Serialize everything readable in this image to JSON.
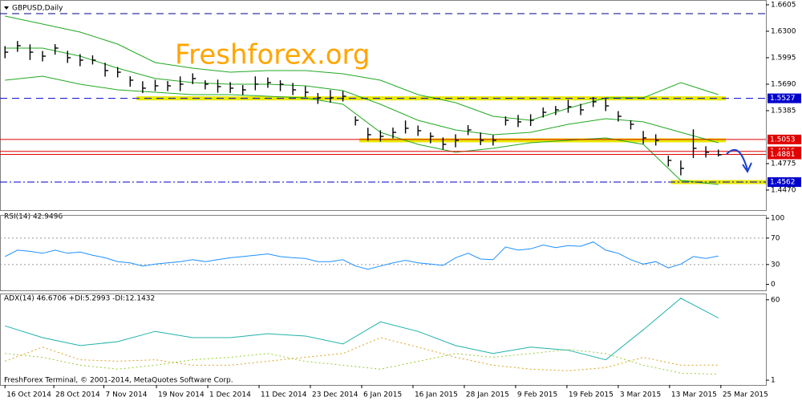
{
  "chart_data": [
    {
      "type": "ohlc",
      "title": "GBPUSD,Daily",
      "annotation": "Freshforex.org",
      "color": "#000000",
      "xlim": [
        -0.4,
        60.8
      ],
      "ylim": [
        1.4239,
        1.666
      ],
      "yticks": [
        1.6605,
        {
          "value": 1.63,
          "label": "1.6300"
        },
        1.5995,
        {
          "value": 1.569,
          "label": "1.5690"
        },
        1.5385,
        1.4775,
        {
          "value": 1.447,
          "label": "1.4470"
        }
      ],
      "high": [
        1.6129,
        1.6188,
        1.6149,
        1.6073,
        1.6151,
        1.6075,
        1.6037,
        1.6022,
        1.5937,
        1.5888,
        1.5781,
        1.5724,
        1.5741,
        1.5726,
        1.578,
        1.5815,
        1.5735,
        1.5742,
        1.5714,
        1.568,
        1.578,
        1.5768,
        1.5735,
        1.5705,
        1.5667,
        1.5588,
        1.5623,
        1.5611,
        1.5319,
        1.5188,
        1.5159,
        1.519,
        1.5272,
        1.5214,
        1.5134,
        1.5077,
        1.5113,
        1.5218,
        1.5133,
        1.5103,
        1.5319,
        1.5336,
        1.5344,
        1.5421,
        1.5439,
        1.5511,
        1.5464,
        1.5542,
        1.553,
        1.538,
        1.5273,
        1.5151,
        1.5113,
        1.4867,
        1.481,
        1.517,
        1.4975,
        1.4937
      ],
      "low": [
        1.5989,
        1.6063,
        1.5969,
        1.5953,
        1.6031,
        1.5935,
        1.5897,
        1.5917,
        1.5777,
        1.5768,
        1.5661,
        1.5589,
        1.5611,
        1.5611,
        1.561,
        1.569,
        1.563,
        1.5592,
        1.5589,
        1.5565,
        1.562,
        1.5648,
        1.561,
        1.5565,
        1.5542,
        1.5463,
        1.5478,
        1.5491,
        1.5214,
        1.5038,
        1.5029,
        1.5065,
        1.5122,
        1.5094,
        1.5009,
        1.4937,
        1.4963,
        1.5103,
        1.4988,
        1.4983,
        1.5214,
        1.5196,
        1.5209,
        1.5306,
        1.5334,
        1.5361,
        1.5334,
        1.5427,
        1.538,
        1.526,
        1.5168,
        1.5001,
        1.4983,
        1.4742,
        1.464,
        1.484,
        1.4845,
        1.4857
      ],
      "close": [
        1.6059,
        1.6133,
        1.6059,
        1.6013,
        1.6106,
        1.5995,
        1.5967,
        1.5967,
        1.5847,
        1.5828,
        1.5736,
        1.5644,
        1.5671,
        1.5671,
        1.569,
        1.5755,
        1.569,
        1.5662,
        1.5644,
        1.5625,
        1.569,
        1.5708,
        1.569,
        1.5625,
        1.5597,
        1.5533,
        1.5533,
        1.5551,
        1.5274,
        1.5108,
        1.5089,
        1.5135,
        1.5182,
        1.5154,
        1.5089,
        1.4997,
        1.5043,
        1.5163,
        1.5043,
        1.5043,
        1.5274,
        1.5256,
        1.5274,
        1.5366,
        1.5394,
        1.5431,
        1.5394,
        1.5487,
        1.544,
        1.532,
        1.5228,
        1.5071,
        1.5043,
        1.4812,
        1.472,
        1.4951,
        1.4905,
        1.4877
      ],
      "bands": {
        "color": "#22a822",
        "x": [
          0,
          3,
          6,
          9,
          12,
          15,
          18,
          21,
          24,
          27,
          30,
          33,
          36,
          39,
          42,
          45,
          48,
          51,
          54,
          57
        ],
        "upper": [
          1.6475,
          1.6383,
          1.629,
          1.6152,
          1.5939,
          1.5875,
          1.5828,
          1.5847,
          1.5847,
          1.581,
          1.5736,
          1.557,
          1.5477,
          1.532,
          1.5274,
          1.5413,
          1.5533,
          1.5533,
          1.5708,
          1.557
        ],
        "middle": [
          1.6106,
          1.6106,
          1.6013,
          1.5875,
          1.5755,
          1.5708,
          1.569,
          1.569,
          1.5671,
          1.5616,
          1.5459,
          1.5274,
          1.5163,
          1.5108,
          1.5135,
          1.5228,
          1.5292,
          1.5256,
          1.5135,
          1.5015
        ],
        "lower": [
          1.5736,
          1.5782,
          1.569,
          1.5625,
          1.5597,
          1.557,
          1.557,
          1.5551,
          1.5533,
          1.5459,
          1.5135,
          1.4997,
          1.4905,
          1.4951,
          1.5015,
          1.5043,
          1.5071,
          1.4997,
          1.4581,
          1.4535
        ]
      },
      "highlights": {
        "color": "#e8e800",
        "zones": [
          {
            "value": 1.5527,
            "from": 10.5,
            "to": 57.6
          },
          {
            "value": 1.5043,
            "from": 28.3,
            "to": 57.6
          },
          {
            "value": 1.4562,
            "from": 53.2,
            "to": 60.8
          }
        ]
      },
      "levels": [
        {
          "value": 1.6503,
          "color": "#00008b",
          "style": "dash",
          "tag": false
        },
        {
          "value": 1.5527,
          "color": "#0000cd",
          "style": "dash",
          "tag": true
        },
        {
          "value": 1.5053,
          "color": "#e00000",
          "style": "solid",
          "tag": true
        },
        {
          "value": 1.4916,
          "color": "#e00000",
          "style": "solid",
          "tag": true
        },
        {
          "value": 1.4881,
          "color": "#e00000",
          "style": "solid",
          "tag": true
        },
        {
          "value": 1.4562,
          "color": "#0000cd",
          "style": "dashdot",
          "tag": true
        }
      ]
    },
    {
      "type": "line",
      "title": "RSI(14) 42.9496",
      "color": "#1e90ff",
      "xlim": [
        -0.4,
        60.8
      ],
      "ylim": [
        -9,
        105
      ],
      "yticks": [
        100,
        70,
        30,
        0
      ],
      "levels": [
        70,
        30
      ],
      "values": [
        42.1,
        51.8,
        49.9,
        47.0,
        51.8,
        47.0,
        48.9,
        44.1,
        40.2,
        34.4,
        32.5,
        27.7,
        30.6,
        32.5,
        34.4,
        37.3,
        34.4,
        37.3,
        40.2,
        42.1,
        44.1,
        46.0,
        42.1,
        40.2,
        39.2,
        34.4,
        34.4,
        37.3,
        27.7,
        22.9,
        27.7,
        32.5,
        36.4,
        32.5,
        30.6,
        28.6,
        40.2,
        47.0,
        38.3,
        37.3,
        56.6,
        51.8,
        53.7,
        59.5,
        55.6,
        58.5,
        57.6,
        64.3,
        51.8,
        47.0,
        37.3,
        30.6,
        34.4,
        24.8,
        30.6,
        42.1,
        39.2,
        42.9
      ]
    },
    {
      "type": "multiline",
      "title": "ADX(14) 46.6706 +DI:5.2993 -DI:12.1432",
      "footer": "FreshForex Terminal, © 2001-2014, MetaQuotes Software Corp.",
      "xlim": [
        -0.4,
        60.8
      ],
      "ylim": [
        -2.5,
        64.6
      ],
      "yticks": [
        60,
        1
      ],
      "xticks": [
        {
          "value": 0,
          "label": "16 Oct 2014"
        },
        {
          "value": 3.9,
          "label": "28 Oct 2014"
        },
        {
          "value": 7.9,
          "label": "7 Nov 2014"
        },
        {
          "value": 12.1,
          "label": "19 Nov 2014"
        },
        {
          "value": 16.2,
          "label": "1 Dec 2014"
        },
        {
          "value": 20.3,
          "label": "11 Dec 2014"
        },
        {
          "value": 24.4,
          "label": "23 Dec 2014"
        },
        {
          "value": 28.5,
          "label": "6 Jan 2015"
        },
        {
          "value": 32.6,
          "label": "16 Jan 2015"
        },
        {
          "value": 36.7,
          "label": "28 Jan 2015"
        },
        {
          "value": 40.8,
          "label": "9 Feb 2015"
        },
        {
          "value": 44.9,
          "label": "19 Feb 2015"
        },
        {
          "value": 49,
          "label": "3 Mar 2015"
        },
        {
          "value": 53.1,
          "label": "13 Mar 2015"
        },
        {
          "value": 57.2,
          "label": "25 Mar 2015"
        }
      ],
      "x": [
        0,
        3,
        6,
        9,
        12,
        15,
        18,
        21,
        24,
        27,
        30,
        33,
        36,
        39,
        42,
        45,
        48,
        51,
        54,
        57
      ],
      "series": [
        {
          "color": "#20b2aa",
          "style": "solid",
          "values": [
            40.9,
            32.2,
            26.4,
            29.3,
            36.8,
            32.2,
            32.2,
            35.1,
            33.4,
            27.6,
            43.8,
            36.8,
            26.4,
            20.6,
            25.3,
            23.0,
            16.0,
            38.0,
            61.1,
            46.7
          ]
        },
        {
          "color": "#9acd32",
          "style": "dot",
          "values": [
            20.6,
            17.8,
            12.0,
            9.1,
            12.0,
            16.0,
            17.8,
            20.6,
            14.8,
            12.0,
            9.1,
            14.8,
            20.6,
            17.8,
            20.6,
            23.5,
            20.6,
            12.0,
            6.2,
            5.3
          ]
        },
        {
          "color": "#daa520",
          "style": "dot",
          "values": [
            14.9,
            25.3,
            16.0,
            14.9,
            16.0,
            12.0,
            12.0,
            14.9,
            17.8,
            20.6,
            32.2,
            25.3,
            17.8,
            12.0,
            9.1,
            7.9,
            10.2,
            17.8,
            12.0,
            12.1
          ]
        }
      ]
    }
  ]
}
